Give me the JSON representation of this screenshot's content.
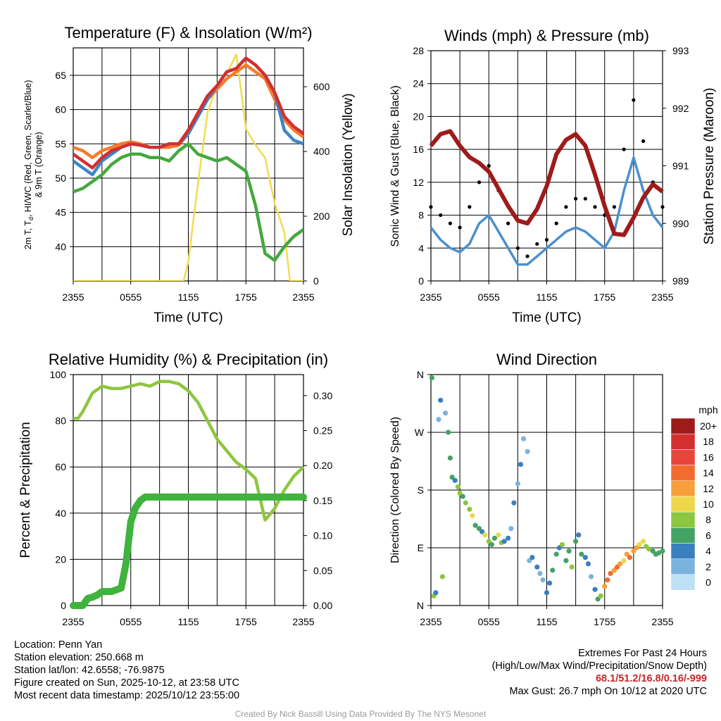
{
  "chart_data": [
    {
      "type": "line",
      "title": "Temperature (F) & Insolation (W/m²)",
      "xlabel": "Time (UTC)",
      "ylabel": "2m T, Td, HI/WC (Red, Green, Scarlet/Blue) & 9m T (Orange)",
      "ylabel_lines": [
        "2m T, T",
        "d",
        ", HI/WC (Red, Green, Scarlet/Blue)",
        "& 9m T (Orange)"
      ],
      "y2label": "Solar Insolation (Yellow)",
      "xticks": [
        "2355",
        "0555",
        "1155",
        "1755",
        "2355"
      ],
      "ylim": [
        35,
        69
      ],
      "yticks": [
        40,
        45,
        50,
        55,
        60,
        65
      ],
      "y2lim": [
        0,
        720
      ],
      "y2ticks": [
        0,
        200,
        400,
        600
      ],
      "series": [
        {
          "name": "2m Temperature",
          "color": "#d32f2f",
          "axis": "left",
          "x": [
            0,
            1,
            2,
            3,
            4,
            5,
            6,
            7,
            8,
            9,
            10,
            11,
            12,
            13,
            14,
            15,
            16,
            17,
            18,
            19,
            20,
            21,
            22,
            23,
            24
          ],
          "values": [
            53.5,
            52.5,
            51.5,
            53,
            54,
            54.5,
            55,
            54.8,
            54.5,
            54.5,
            55,
            55,
            57,
            59.5,
            62,
            63.5,
            65.5,
            66,
            67.5,
            66.5,
            65,
            62.5,
            59,
            57.5,
            56.5
          ]
        },
        {
          "name": "9m Temperature",
          "color": "#f57c2b",
          "axis": "left",
          "x": [
            0,
            1,
            2,
            3,
            4,
            5,
            6,
            7,
            8,
            9,
            10,
            11,
            12,
            13,
            14,
            15,
            16,
            17,
            18,
            19,
            20,
            21,
            22,
            23,
            24
          ],
          "values": [
            54.5,
            54,
            53,
            54,
            54.5,
            55,
            55.3,
            55,
            54.5,
            54.5,
            54.5,
            54.8,
            56.5,
            59,
            61.5,
            63,
            64.5,
            65.5,
            66.5,
            65.5,
            64.5,
            61.5,
            58.5,
            57,
            56
          ]
        },
        {
          "name": "Dew Point",
          "color": "#43a93d",
          "axis": "left",
          "x": [
            0,
            1,
            2,
            3,
            4,
            5,
            6,
            7,
            8,
            9,
            10,
            11,
            12,
            13,
            14,
            15,
            16,
            17,
            18,
            19,
            20,
            21,
            22,
            23,
            24
          ],
          "values": [
            48,
            48.5,
            49.5,
            50.5,
            52,
            53,
            53.5,
            53.5,
            53,
            53,
            52.5,
            54,
            55,
            53.5,
            53,
            52.5,
            53,
            52,
            51,
            46,
            39,
            38,
            40,
            41.5,
            42.5
          ]
        },
        {
          "name": "HI/WC",
          "color": "#3d85c6",
          "axis": "left",
          "x": [
            0,
            1,
            2,
            3,
            4,
            5,
            6,
            7,
            8,
            9,
            10,
            11,
            12,
            13,
            14,
            15,
            16,
            17,
            18,
            19,
            20,
            21,
            22,
            23,
            24
          ],
          "values": [
            52.5,
            51.5,
            50.5,
            52.5,
            53.5,
            54.5,
            55,
            54.8,
            54.5,
            54.5,
            55,
            55,
            56.5,
            59,
            61.5,
            63.5,
            65.5,
            66,
            67.5,
            66.5,
            65,
            62.5,
            57,
            55.5,
            55
          ]
        },
        {
          "name": "Solar Insolation",
          "color": "#f2dc4f",
          "axis": "right",
          "x": [
            0,
            11.5,
            12,
            13,
            14,
            15,
            16,
            17,
            18,
            19,
            20,
            21,
            22,
            22.6,
            24
          ],
          "values": [
            0,
            0,
            60,
            300,
            520,
            610,
            640,
            700,
            470,
            420,
            380,
            240,
            150,
            0,
            0
          ]
        }
      ]
    },
    {
      "type": "line",
      "title": "Winds (mph) & Pressure (mb)",
      "xlabel": "Time (UTC)",
      "ylabel": "Sonic Wind & Gust (Blue, Black)",
      "y2label": "Station Pressure (Maroon)",
      "xticks": [
        "2355",
        "0555",
        "1155",
        "1755",
        "2355"
      ],
      "ylim": [
        0,
        28
      ],
      "yticks": [
        0,
        4,
        8,
        12,
        16,
        20,
        24,
        28
      ],
      "y2lim": [
        989,
        993
      ],
      "y2ticks": [
        989,
        990,
        991,
        992,
        993
      ],
      "series": [
        {
          "name": "Sonic Wind",
          "color": "#4a90cf",
          "axis": "left",
          "x": [
            0,
            1,
            2,
            3,
            4,
            5,
            6,
            7,
            8,
            9,
            10,
            11,
            12,
            13,
            14,
            15,
            16,
            17,
            18,
            19,
            20,
            21,
            22,
            23,
            24
          ],
          "values": [
            6.5,
            5,
            4,
            3.5,
            4.5,
            7,
            8,
            6,
            4,
            2,
            2,
            3,
            4,
            5,
            6,
            6.5,
            6,
            5,
            4,
            6,
            11,
            15,
            11,
            8,
            6.5
          ]
        },
        {
          "name": "Gust",
          "color": "#000000",
          "axis": "left",
          "style": "points",
          "x": [
            0,
            1,
            2,
            3,
            4,
            5,
            6,
            7,
            8,
            9,
            10,
            11,
            12,
            13,
            14,
            15,
            16,
            17,
            18,
            19,
            20,
            21,
            22,
            23,
            24
          ],
          "values": [
            9,
            8,
            7,
            6.5,
            9,
            12,
            14,
            11,
            7,
            4,
            3,
            4.5,
            5,
            7,
            9,
            10,
            10,
            9,
            8,
            9,
            16,
            22,
            17,
            12,
            9
          ]
        },
        {
          "name": "Station Pressure",
          "color": "#9e1b1b",
          "axis": "right",
          "x": [
            0,
            1,
            2,
            3,
            4,
            5,
            6,
            7,
            8,
            9,
            10,
            11,
            12,
            13,
            14,
            15,
            16,
            17,
            18,
            19,
            20,
            21,
            22,
            23,
            24
          ],
          "values": [
            991.35,
            991.55,
            991.6,
            991.35,
            991.15,
            991.05,
            990.9,
            990.6,
            990.3,
            990.05,
            990.0,
            990.25,
            990.65,
            991.2,
            991.45,
            991.55,
            991.35,
            990.85,
            990.3,
            989.82,
            989.8,
            990.1,
            990.45,
            990.68,
            990.55
          ]
        }
      ]
    },
    {
      "type": "line",
      "title": "Relative Humidity (%) & Precipitation (in)",
      "xlabel": "",
      "ylabel": "Percent & Precipitation",
      "xticks": [
        "2355",
        "0555",
        "1155",
        "1755",
        "2355"
      ],
      "ylim": [
        0,
        100
      ],
      "yticks": [
        0,
        20,
        40,
        60,
        80,
        100
      ],
      "y2lim": [
        0,
        0.33
      ],
      "y2ticks": [
        0.0,
        0.05,
        0.1,
        0.15,
        0.2,
        0.25,
        0.3
      ],
      "series": [
        {
          "name": "Relative Humidity",
          "color": "#8dc63f",
          "axis": "left",
          "x": [
            0,
            0.5,
            1,
            2,
            3,
            4,
            5,
            6,
            7,
            8,
            9,
            10,
            11,
            12,
            13,
            14,
            15,
            16,
            17,
            18,
            19,
            20,
            21,
            22,
            23,
            24
          ],
          "values": [
            81,
            81,
            84,
            92,
            95,
            94,
            94,
            95,
            96,
            95,
            97,
            97,
            96,
            93,
            88,
            80,
            72,
            67,
            62,
            59,
            55,
            37,
            42,
            50,
            56,
            60
          ]
        },
        {
          "name": "Precipitation",
          "color": "#3fb33c",
          "axis": "right",
          "x": [
            0,
            1,
            1.5,
            2,
            2.5,
            3,
            4,
            5,
            5.5,
            6,
            6.5,
            7,
            7.5,
            8,
            9,
            12,
            15,
            18,
            21,
            24
          ],
          "values": [
            0,
            0,
            0.01,
            0.012,
            0.015,
            0.02,
            0.02,
            0.025,
            0.06,
            0.12,
            0.14,
            0.15,
            0.155,
            0.155,
            0.155,
            0.155,
            0.155,
            0.155,
            0.155,
            0.155
          ]
        }
      ]
    },
    {
      "type": "scatter",
      "title": "Wind Direction",
      "xlabel": "",
      "ylabel": "Direction (Colored By Speed)",
      "xticks": [
        "2355",
        "0555",
        "1155",
        "1755",
        "2355"
      ],
      "ylim": [
        0,
        360
      ],
      "yticks": [
        0,
        90,
        180,
        270,
        360
      ],
      "ytick_labels": [
        "N",
        "E",
        "S",
        "W",
        "N"
      ],
      "colorbar": {
        "title": "mph",
        "labels": [
          "20+",
          "18",
          "16",
          "14",
          "12",
          "10",
          "8",
          "6",
          "4",
          "2",
          "0"
        ],
        "colors": [
          "#9e1b1b",
          "#d32f2f",
          "#e8453c",
          "#f26b2f",
          "#f89e3a",
          "#eed84a",
          "#8dc63f",
          "#43a365",
          "#3a7fc0",
          "#7bb3df",
          "#bde0f5"
        ]
      },
      "x": [
        0.1,
        0.3,
        0.5,
        0.8,
        1,
        1.2,
        1.5,
        1.8,
        2,
        2.2,
        2.5,
        2.8,
        3,
        3.3,
        3.6,
        4,
        4.3,
        4.6,
        5,
        5.3,
        5.6,
        6,
        6.3,
        6.6,
        7,
        7.3,
        7.6,
        8,
        8.3,
        8.6,
        9,
        9.3,
        9.6,
        10,
        10.2,
        10.5,
        11,
        11.3,
        11.6,
        12,
        12.3,
        12.6,
        13,
        13.3,
        13.6,
        14,
        14.3,
        14.6,
        15,
        15.3,
        15.6,
        16,
        16.3,
        16.6,
        17,
        17.3,
        17.6,
        18,
        18.3,
        18.6,
        19,
        19.3,
        19.6,
        20,
        20.3,
        20.6,
        21,
        21.3,
        21.6,
        22,
        22.3,
        22.6,
        23,
        23.3,
        23.6,
        24
      ],
      "y": [
        355,
        15,
        20,
        290,
        320,
        45,
        300,
        270,
        230,
        200,
        195,
        185,
        175,
        170,
        160,
        150,
        140,
        125,
        120,
        115,
        110,
        100,
        95,
        105,
        110,
        98,
        100,
        105,
        120,
        160,
        190,
        220,
        260,
        240,
        70,
        75,
        60,
        50,
        40,
        20,
        35,
        55,
        80,
        90,
        95,
        70,
        85,
        60,
        100,
        110,
        80,
        75,
        65,
        45,
        25,
        10,
        15,
        30,
        40,
        50,
        55,
        60,
        65,
        70,
        80,
        75,
        85,
        90,
        95,
        100,
        92,
        88,
        85,
        80,
        82,
        85
      ],
      "speeds": [
        6,
        7,
        3,
        2,
        3,
        7,
        2,
        5,
        6,
        5,
        4,
        7,
        8,
        6,
        8,
        7,
        9,
        6,
        5,
        4,
        10,
        8,
        6,
        5,
        9,
        7,
        4,
        3,
        2,
        3,
        2,
        3,
        2,
        1,
        2,
        3,
        4,
        1,
        2,
        3,
        4,
        5,
        6,
        4,
        7,
        6,
        5,
        8,
        6,
        4,
        5,
        4,
        3,
        2,
        4,
        6,
        8,
        11,
        13,
        14,
        12,
        14,
        12,
        10,
        12,
        13,
        11,
        12,
        10,
        9,
        8,
        7,
        6,
        5,
        6,
        5
      ]
    }
  ],
  "info": {
    "location": "Location: Penn Yan",
    "elevation": "Station elevation: 250.668 m",
    "latlon": "Station lat/lon: 42.6558; -76.9875",
    "created": "Figure created on Sun, 2025-10-12, at 23:58 UTC",
    "recent": "Most recent data timestamp: 2025/10/12 23:55:00",
    "extremes_title": "Extremes For Past 24 Hours",
    "extremes_desc": "(High/Low/Max Wind/Precipitation/Snow Depth)",
    "extremes_values": "68.1/51.2/16.8/0.16/-999",
    "max_gust": "Max Gust: 26.7 mph On 10/12 at 2020 UTC",
    "credit": "Created By Nick Bassill Using Data Provided By The NYS Mesonet"
  }
}
